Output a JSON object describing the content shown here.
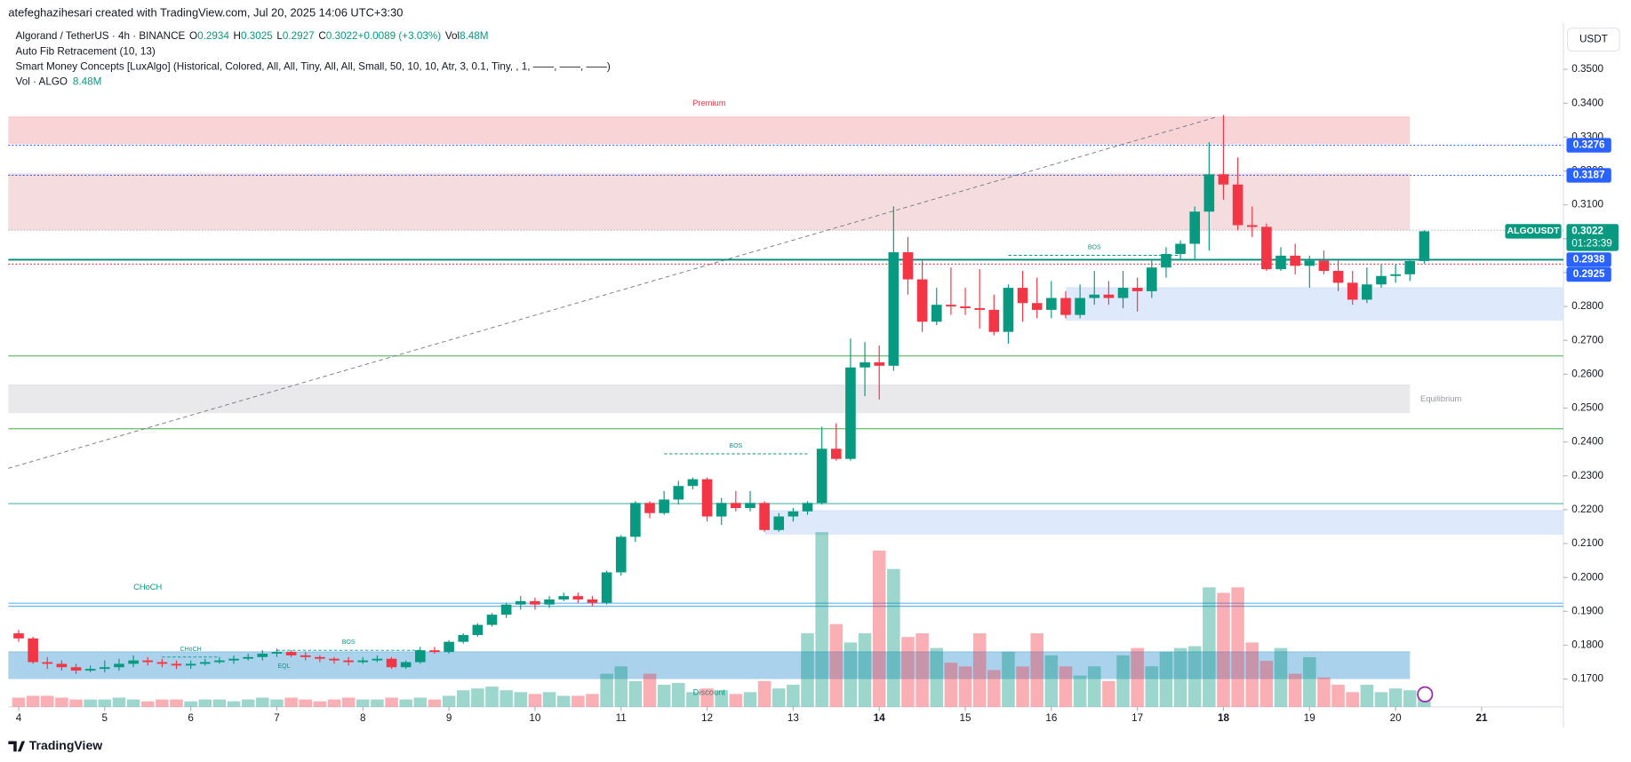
{
  "chart_data": {
    "type": "candlestick",
    "credit": "atefeghazihesari created with TradingView.com, Jul 20, 2025 14:06 UTC+3:30",
    "title": "Algorand / TetherUS · 4h · BINANCE",
    "ohlc_legend": [
      {
        "label": "O",
        "value": "0.2934"
      },
      {
        "label": "H",
        "value": "0.3025"
      },
      {
        "label": "L",
        "value": "0.2927"
      },
      {
        "label": "C",
        "value": "0.3022"
      },
      {
        "label": "",
        "value": "+0.0089 (+3.03%)"
      },
      {
        "label": "Vol",
        "value": "8.48M"
      }
    ],
    "indicators": [
      "Auto Fib Retracement (10, 13)",
      "Smart Money Concepts [LuxAlgo] (Historical, Colored, All, All, Tiny, All, All, Small, 50, 10, 10, Atr, 3, 0.1, Tiny, , 1, ——, ——, ——)"
    ],
    "volume_label": "Vol · ALGO",
    "volume_value": "8.48M",
    "currency": "USDT",
    "symbol": "ALGOUSDT",
    "countdown": "01:23:39",
    "brand": "TradingView",
    "up_color": "#089981",
    "down_color": "#f23645",
    "open": [
      0.1835,
      0.182,
      0.175,
      0.1745,
      0.1735,
      0.1725,
      0.173,
      0.1735,
      0.1745,
      0.1755,
      0.175,
      0.1745,
      0.174,
      0.1745,
      0.175,
      0.1755,
      0.176,
      0.1765,
      0.1775,
      0.178,
      0.177,
      0.1765,
      0.176,
      0.1755,
      0.175,
      0.1755,
      0.176,
      0.1735,
      0.175,
      0.1785,
      0.178,
      0.181,
      0.183,
      0.186,
      0.189,
      0.192,
      0.193,
      0.192,
      0.1935,
      0.1945,
      0.1935,
      0.1925,
      0.2015,
      0.212,
      0.222,
      0.219,
      0.223,
      0.227,
      0.229,
      0.218,
      0.222,
      0.2205,
      0.222,
      0.214,
      0.218,
      0.2195,
      0.222,
      0.238,
      0.235,
      0.262,
      0.2635,
      0.2625,
      0.296,
      0.288,
      0.2755,
      0.2805,
      0.28,
      0.2795,
      0.279,
      0.2725,
      0.2855,
      0.281,
      0.279,
      0.2825,
      0.2775,
      0.2825,
      0.2835,
      0.2825,
      0.2855,
      0.2845,
      0.2915,
      0.2955,
      0.2985,
      0.308,
      0.319,
      0.316,
      0.304,
      0.3035,
      0.291,
      0.295,
      0.292,
      0.2935,
      0.2905,
      0.287,
      0.282,
      0.2865,
      0.289,
      0.2895,
      0.2934
    ],
    "high": [
      0.1845,
      0.1825,
      0.1765,
      0.1755,
      0.1745,
      0.174,
      0.1755,
      0.176,
      0.177,
      0.1765,
      0.176,
      0.1755,
      0.1755,
      0.176,
      0.1765,
      0.177,
      0.1775,
      0.1785,
      0.179,
      0.1785,
      0.178,
      0.177,
      0.1765,
      0.1765,
      0.1765,
      0.177,
      0.1765,
      0.1755,
      0.1795,
      0.1795,
      0.1815,
      0.1835,
      0.1865,
      0.1895,
      0.1925,
      0.1945,
      0.194,
      0.1945,
      0.1955,
      0.1955,
      0.1945,
      0.202,
      0.2125,
      0.2225,
      0.2225,
      0.2255,
      0.2285,
      0.2295,
      0.2295,
      0.2235,
      0.2255,
      0.2255,
      0.2225,
      0.219,
      0.2205,
      0.2225,
      0.2445,
      0.2455,
      0.2705,
      0.2695,
      0.2685,
      0.3095,
      0.3005,
      0.2935,
      0.2855,
      0.2915,
      0.2855,
      0.291,
      0.2835,
      0.2865,
      0.2905,
      0.2885,
      0.2875,
      0.2845,
      0.2865,
      0.2905,
      0.2875,
      0.2905,
      0.2885,
      0.2935,
      0.2975,
      0.2995,
      0.3095,
      0.3285,
      0.3365,
      0.324,
      0.3095,
      0.3045,
      0.2975,
      0.2985,
      0.295,
      0.2965,
      0.2935,
      0.2905,
      0.2915,
      0.2925,
      0.2925,
      0.294,
      0.3025
    ],
    "low": [
      0.181,
      0.1745,
      0.173,
      0.1725,
      0.1715,
      0.172,
      0.172,
      0.1725,
      0.1735,
      0.174,
      0.1735,
      0.173,
      0.173,
      0.174,
      0.1745,
      0.1745,
      0.1755,
      0.1755,
      0.1765,
      0.1765,
      0.1755,
      0.175,
      0.1745,
      0.174,
      0.1745,
      0.175,
      0.173,
      0.173,
      0.1745,
      0.1775,
      0.1775,
      0.1805,
      0.1825,
      0.1855,
      0.188,
      0.1905,
      0.1905,
      0.191,
      0.193,
      0.1925,
      0.1915,
      0.192,
      0.2005,
      0.2105,
      0.2175,
      0.2185,
      0.2215,
      0.226,
      0.2165,
      0.2155,
      0.2195,
      0.2195,
      0.2135,
      0.2135,
      0.2165,
      0.2185,
      0.2215,
      0.2345,
      0.2345,
      0.2535,
      0.2525,
      0.261,
      0.2835,
      0.2725,
      0.2745,
      0.2775,
      0.2775,
      0.2735,
      0.2715,
      0.269,
      0.2755,
      0.2765,
      0.2765,
      0.2765,
      0.2765,
      0.2805,
      0.2805,
      0.2795,
      0.2785,
      0.2825,
      0.2885,
      0.2935,
      0.2935,
      0.2965,
      0.3115,
      0.3025,
      0.3005,
      0.2905,
      0.2905,
      0.2895,
      0.2855,
      0.2895,
      0.2845,
      0.2805,
      0.281,
      0.2855,
      0.287,
      0.2875,
      0.2927
    ],
    "close": [
      0.182,
      0.175,
      0.1745,
      0.1735,
      0.1725,
      0.173,
      0.1735,
      0.1745,
      0.1755,
      0.175,
      0.1745,
      0.174,
      0.1745,
      0.175,
      0.1755,
      0.176,
      0.1765,
      0.1775,
      0.178,
      0.177,
      0.1765,
      0.176,
      0.1755,
      0.175,
      0.1755,
      0.176,
      0.1735,
      0.175,
      0.1785,
      0.178,
      0.181,
      0.183,
      0.186,
      0.189,
      0.192,
      0.193,
      0.192,
      0.1935,
      0.1945,
      0.1935,
      0.1925,
      0.2015,
      0.212,
      0.222,
      0.219,
      0.223,
      0.227,
      0.229,
      0.218,
      0.222,
      0.2205,
      0.222,
      0.214,
      0.218,
      0.2195,
      0.222,
      0.238,
      0.235,
      0.262,
      0.2635,
      0.2625,
      0.296,
      0.288,
      0.2755,
      0.2805,
      0.28,
      0.2795,
      0.279,
      0.2725,
      0.2855,
      0.281,
      0.279,
      0.2825,
      0.2775,
      0.2825,
      0.2835,
      0.2825,
      0.2855,
      0.2845,
      0.2915,
      0.2955,
      0.2985,
      0.308,
      0.319,
      0.316,
      0.304,
      0.3035,
      0.291,
      0.295,
      0.292,
      0.2935,
      0.2905,
      0.287,
      0.282,
      0.2865,
      0.289,
      0.2895,
      0.2934,
      0.3022
    ],
    "volume": [
      5,
      6,
      6,
      5,
      4,
      4,
      4,
      5,
      4,
      3,
      4,
      4,
      3,
      4,
      4,
      3,
      4,
      5,
      4,
      5,
      4,
      3,
      4,
      5,
      4,
      4,
      5,
      4,
      5,
      4,
      6,
      9,
      10,
      11,
      9,
      8,
      7,
      8,
      6,
      6,
      7,
      18,
      22,
      14,
      18,
      12,
      13,
      8,
      10,
      9,
      7,
      8,
      14,
      10,
      12,
      40,
      95,
      45,
      35,
      40,
      85,
      75,
      38,
      40,
      32,
      24,
      22,
      40,
      20,
      30,
      22,
      40,
      28,
      22,
      17,
      22,
      14,
      28,
      32,
      22,
      30,
      32,
      33,
      65,
      62,
      65,
      35,
      25,
      32,
      18,
      27,
      16,
      12,
      8,
      12,
      8,
      10,
      9,
      8.48
    ],
    "ylim": [
      0.1618,
      0.3637
    ],
    "volume_lim": [
      0,
      372
    ],
    "xlim": [
      -0.72,
      107.7
    ],
    "yticks": [
      {
        "value": 0.35,
        "label": "0.3500"
      },
      {
        "value": 0.34,
        "label": "0.3400"
      },
      {
        "value": 0.33,
        "label": "0.3300"
      },
      {
        "value": 0.32,
        "label": "0.3200"
      },
      {
        "value": 0.31,
        "label": "0.3100"
      },
      {
        "value": 0.3,
        "label": "0.3000"
      },
      {
        "value": 0.29,
        "label": "0.2900"
      },
      {
        "value": 0.28,
        "label": "0.2800"
      },
      {
        "value": 0.27,
        "label": "0.2700"
      },
      {
        "value": 0.26,
        "label": "0.2600"
      },
      {
        "value": 0.25,
        "label": "0.2500"
      },
      {
        "value": 0.24,
        "label": "0.2400"
      },
      {
        "value": 0.23,
        "label": "0.2300"
      },
      {
        "value": 0.22,
        "label": "0.2200"
      },
      {
        "value": 0.21,
        "label": "0.2100"
      },
      {
        "value": 0.2,
        "label": "0.2000"
      },
      {
        "value": 0.19,
        "label": "0.1900"
      },
      {
        "value": 0.18,
        "label": "0.1800"
      },
      {
        "value": 0.17,
        "label": "0.1700"
      }
    ],
    "xticks": [
      {
        "value": 0,
        "label": "4"
      },
      {
        "value": 6,
        "label": "5"
      },
      {
        "value": 12,
        "label": "6"
      },
      {
        "value": 18,
        "label": "7"
      },
      {
        "value": 24,
        "label": "8"
      },
      {
        "value": 30,
        "label": "9"
      },
      {
        "value": 36,
        "label": "10"
      },
      {
        "value": 42,
        "label": "11"
      },
      {
        "value": 48,
        "label": "12"
      },
      {
        "value": 54,
        "label": "13"
      },
      {
        "value": 60,
        "label": "14"
      },
      {
        "value": 66,
        "label": "15"
      },
      {
        "value": 72,
        "label": "16"
      },
      {
        "value": 78,
        "label": "17"
      },
      {
        "value": 84,
        "label": "18"
      },
      {
        "value": 90,
        "label": "19"
      },
      {
        "value": 96,
        "label": "20"
      },
      {
        "value": 102,
        "label": "21"
      }
    ],
    "zones": [
      {
        "label": "Premium",
        "top": 0.3359,
        "bottom": 0.3279,
        "to": 97,
        "color": "#f7c5c9"
      },
      {
        "top": 0.3191,
        "bottom": 0.3025,
        "to": 97,
        "color": "#f2d0d3"
      },
      {
        "label": "Equilibrium",
        "top": 0.2568,
        "bottom": 0.2485,
        "to": 97,
        "color": "#e1e2e5"
      },
      {
        "top": 0.2855,
        "bottom": 0.2758,
        "from": 73,
        "color": "#d4e1fb"
      },
      {
        "top": 0.2197,
        "bottom": 0.2126,
        "from": 52,
        "color": "#d4e1fb"
      },
      {
        "label": "Discount",
        "top": 0.178,
        "bottom": 0.17,
        "to": 97,
        "color": "#8ec3e6"
      }
    ],
    "levels": [
      {
        "value": 0.2654,
        "color": "#66bb6a"
      },
      {
        "value": 0.2439,
        "color": "#66bb6a"
      },
      {
        "value": 0.2218,
        "color": "#4db6ac"
      },
      {
        "value": 0.1924,
        "color": "#64b5f6"
      },
      {
        "value": 0.1915,
        "color": "#64b5f6"
      },
      {
        "value": 0.3025,
        "color": "#b2b5be"
      }
    ],
    "price_lines": [
      {
        "value": 0.3276,
        "label": "0.3276",
        "color": "#2962ff"
      },
      {
        "value": 0.3187,
        "label": "0.3187",
        "color": "#2962ff"
      },
      {
        "value": 0.2938,
        "label": "0.2938",
        "color": "#2962ff"
      },
      {
        "value": 0.2925,
        "label": "0.2925",
        "color": "#2962ff"
      }
    ],
    "structures": [
      {
        "label": "BOS",
        "value": 0.2951,
        "from": 69,
        "to": 81
      },
      {
        "label": "BOS",
        "value": 0.2365,
        "from": 45,
        "to": 55
      },
      {
        "label": "BOS",
        "value": 0.1785,
        "from": 18,
        "to": 28
      },
      {
        "label": "CHoCH",
        "value": 0.1765,
        "from": 10,
        "to": 14
      },
      {
        "label": "CHoCH",
        "value": 0.1924,
        "from": 0,
        "to": 18
      },
      {
        "label": "EQL",
        "value": 0.1715,
        "from": 15,
        "to": 22
      }
    ],
    "fib_line": {
      "from": [
        -0.72,
        0.2322
      ],
      "to": [
        83.5,
        0.3359
      ]
    }
  }
}
